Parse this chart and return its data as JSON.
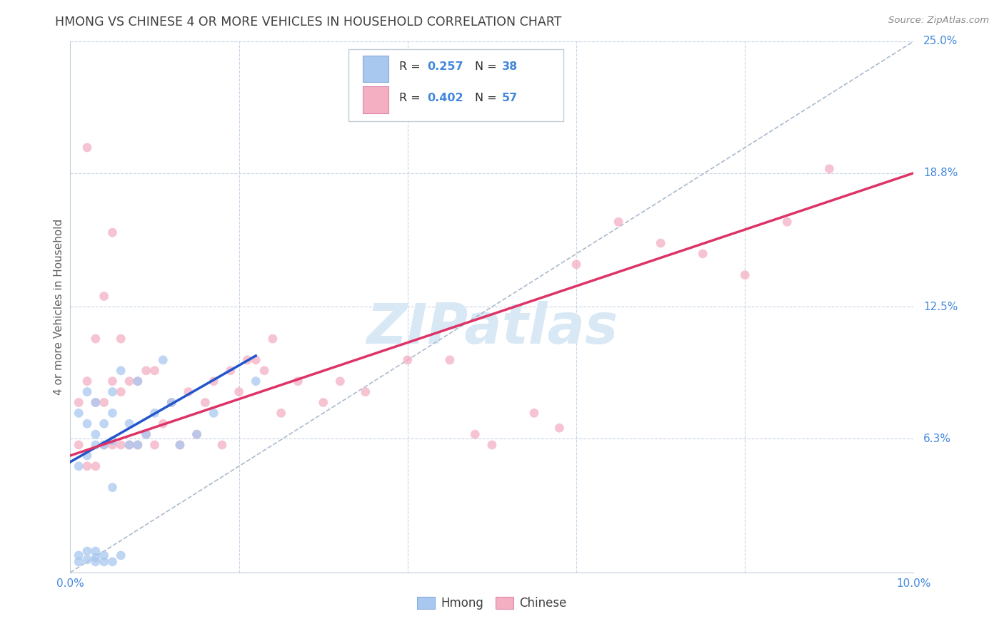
{
  "title": "HMONG VS CHINESE 4 OR MORE VEHICLES IN HOUSEHOLD CORRELATION CHART",
  "source": "Source: ZipAtlas.com",
  "ylabel": "4 or more Vehicles in Household",
  "xlim": [
    0.0,
    0.1
  ],
  "ylim": [
    0.0,
    0.25
  ],
  "xtick_values": [
    0.0,
    0.01,
    0.02,
    0.03,
    0.04,
    0.05,
    0.06,
    0.07,
    0.08,
    0.09,
    0.1
  ],
  "ytick_positions": [
    0.063,
    0.125,
    0.188,
    0.25
  ],
  "ytick_labels": [
    "6.3%",
    "12.5%",
    "18.8%",
    "25.0%"
  ],
  "hmong_R": 0.257,
  "hmong_N": 38,
  "chinese_R": 0.402,
  "chinese_N": 57,
  "hmong_color": "#a8c8f0",
  "chinese_color": "#f4afc3",
  "hmong_line_color": "#2255cc",
  "chinese_line_color": "#dd3366",
  "diagonal_color": "#aabbcc",
  "watermark": "ZIPatlas",
  "watermark_color": "#d8e8f5",
  "background_color": "#ffffff",
  "grid_color": "#c8d4e8",
  "title_color": "#404040",
  "hmong_x": [
    0.001,
    0.001,
    0.001,
    0.001,
    0.002,
    0.002,
    0.002,
    0.002,
    0.002,
    0.003,
    0.003,
    0.003,
    0.003,
    0.003,
    0.003,
    0.004,
    0.004,
    0.004,
    0.004,
    0.005,
    0.005,
    0.005,
    0.005,
    0.005,
    0.006,
    0.006,
    0.007,
    0.007,
    0.008,
    0.008,
    0.009,
    0.01,
    0.011,
    0.012,
    0.013,
    0.015,
    0.017,
    0.022
  ],
  "hmong_y": [
    0.005,
    0.008,
    0.05,
    0.075,
    0.006,
    0.01,
    0.055,
    0.07,
    0.085,
    0.005,
    0.007,
    0.01,
    0.06,
    0.065,
    0.08,
    0.005,
    0.008,
    0.06,
    0.07,
    0.005,
    0.04,
    0.062,
    0.075,
    0.085,
    0.008,
    0.095,
    0.06,
    0.07,
    0.06,
    0.09,
    0.065,
    0.075,
    0.1,
    0.08,
    0.06,
    0.065,
    0.075,
    0.09
  ],
  "chinese_x": [
    0.001,
    0.001,
    0.002,
    0.002,
    0.002,
    0.003,
    0.003,
    0.003,
    0.004,
    0.004,
    0.004,
    0.005,
    0.005,
    0.005,
    0.006,
    0.006,
    0.006,
    0.007,
    0.007,
    0.008,
    0.008,
    0.009,
    0.009,
    0.01,
    0.01,
    0.011,
    0.012,
    0.013,
    0.014,
    0.015,
    0.016,
    0.017,
    0.018,
    0.019,
    0.02,
    0.021,
    0.022,
    0.023,
    0.024,
    0.025,
    0.027,
    0.03,
    0.032,
    0.035,
    0.04,
    0.045,
    0.048,
    0.05,
    0.055,
    0.058,
    0.06,
    0.065,
    0.07,
    0.075,
    0.08,
    0.085,
    0.09
  ],
  "chinese_y": [
    0.06,
    0.08,
    0.05,
    0.09,
    0.2,
    0.05,
    0.08,
    0.11,
    0.06,
    0.08,
    0.13,
    0.06,
    0.09,
    0.16,
    0.06,
    0.085,
    0.11,
    0.06,
    0.09,
    0.06,
    0.09,
    0.065,
    0.095,
    0.06,
    0.095,
    0.07,
    0.08,
    0.06,
    0.085,
    0.065,
    0.08,
    0.09,
    0.06,
    0.095,
    0.085,
    0.1,
    0.1,
    0.095,
    0.11,
    0.075,
    0.09,
    0.08,
    0.09,
    0.085,
    0.1,
    0.1,
    0.065,
    0.06,
    0.075,
    0.068,
    0.145,
    0.165,
    0.155,
    0.15,
    0.14,
    0.165,
    0.19
  ],
  "marker_size": 85,
  "hmong_line_x0": 0.0,
  "hmong_line_x1": 0.022,
  "hmong_line_y0": 0.052,
  "hmong_line_y1": 0.102,
  "chinese_line_x0": 0.0,
  "chinese_line_x1": 0.1,
  "chinese_line_y0": 0.055,
  "chinese_line_y1": 0.188
}
